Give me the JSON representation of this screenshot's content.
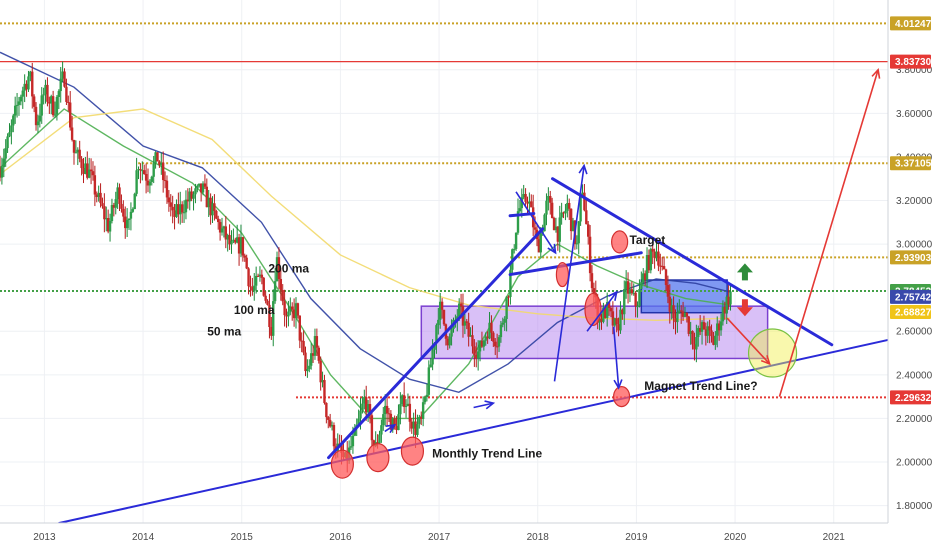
{
  "chart_data": {
    "type": "candlestick",
    "title": "",
    "xlabel": "",
    "ylabel": "",
    "xlim": [
      2012.55,
      2021.55
    ],
    "ylim": [
      1.72,
      4.12
    ],
    "x_ticks": [
      {
        "x": 2013,
        "label": "2013"
      },
      {
        "x": 2014,
        "label": "2014"
      },
      {
        "x": 2015,
        "label": "2015"
      },
      {
        "x": 2016,
        "label": "2016"
      },
      {
        "x": 2017,
        "label": "2017"
      },
      {
        "x": 2018,
        "label": "2018"
      },
      {
        "x": 2019,
        "label": "2019"
      },
      {
        "x": 2020,
        "label": "2020"
      },
      {
        "x": 2021,
        "label": "2021"
      }
    ],
    "y_ticks": [
      {
        "y": 1.8,
        "label": "1.80000"
      },
      {
        "y": 2.0,
        "label": "2.00000"
      },
      {
        "y": 2.2,
        "label": "2.20000"
      },
      {
        "y": 2.4,
        "label": "2.40000"
      },
      {
        "y": 2.6,
        "label": "2.60000"
      },
      {
        "y": 3.0,
        "label": "3.00000"
      },
      {
        "y": 3.2,
        "label": "3.20000"
      },
      {
        "y": 3.4,
        "label": "3.40000"
      },
      {
        "y": 3.6,
        "label": "3.60000"
      },
      {
        "y": 3.8,
        "label": "3.80000"
      }
    ],
    "price_badges": [
      {
        "value": "4.01247",
        "y": 4.01247,
        "color": "#c9a227"
      },
      {
        "value": "3.83730",
        "y": 3.8373,
        "color": "#e53935"
      },
      {
        "value": "3.37105",
        "y": 3.37105,
        "color": "#c9a227"
      },
      {
        "value": "2.93903",
        "y": 2.93903,
        "color": "#c9a227"
      },
      {
        "value": "2.78453",
        "y": 2.78453,
        "color": "#43a047"
      },
      {
        "value": "2.75742",
        "y": 2.75742,
        "color": "#3949ab"
      },
      {
        "value": "2.68827",
        "y": 2.68827,
        "color": "#f0c419",
        "text_color": "#1a1a1a"
      },
      {
        "value": "2.29632",
        "y": 2.29632,
        "color": "#e53935"
      }
    ],
    "horizontal_levels": [
      {
        "y": 4.01247,
        "color": "#c9a227",
        "style": "dotted",
        "from": 2012.55
      },
      {
        "y": 3.8373,
        "color": "#e53935",
        "style": "solid",
        "from": 2012.55
      },
      {
        "y": 3.37105,
        "color": "#c9a227",
        "style": "dotted",
        "from": 2013.95
      },
      {
        "y": 2.93903,
        "color": "#c9a227",
        "style": "dotted",
        "from": 2017.72
      },
      {
        "y": 2.78453,
        "color": "#43a047",
        "style": "dotted",
        "from": 2012.55
      },
      {
        "y": 2.29632,
        "color": "#e53935",
        "style": "dotted",
        "from": 2015.55
      }
    ],
    "zones": [
      {
        "x0": 2016.82,
        "x1": 2020.33,
        "y0": 2.475,
        "y1": 2.715,
        "fill": "#b98cf0",
        "opacity": 0.55,
        "stroke": "#7b3fd0"
      },
      {
        "x0": 2019.05,
        "x1": 2019.92,
        "y0": 2.685,
        "y1": 2.835,
        "fill": "#5577ee",
        "opacity": 0.75,
        "stroke": "#2233aa"
      }
    ],
    "trend_lines": [
      {
        "name": "Monthly Trend Line",
        "x": [
          2013.15,
          2021.55
        ],
        "y": [
          1.72,
          2.56
        ],
        "color": "#2a2ad8",
        "width": 2
      },
      {
        "x": [
          2015.88,
          2018.05
        ],
        "y": [
          2.02,
          3.07
        ],
        "color": "#2a2ad8",
        "width": 3
      },
      {
        "x": [
          2017.72,
          2019.05
        ],
        "y": [
          2.86,
          2.96
        ],
        "color": "#2a2ad8",
        "width": 3
      },
      {
        "x": [
          2018.15,
          2020.98
        ],
        "y": [
          3.3,
          2.538
        ],
        "color": "#2a2ad8",
        "width": 3
      },
      {
        "x": [
          2017.72,
          2017.96
        ],
        "y": [
          3.13,
          3.14
        ],
        "color": "#2a2ad8",
        "width": 3
      }
    ],
    "arrows": [
      {
        "x": [
          2018.17,
          2018.47
        ],
        "y": [
          2.37,
          3.36
        ],
        "color": "#2a2ad8"
      },
      {
        "x": [
          2017.78,
          2018.18
        ],
        "y": [
          3.24,
          2.96
        ],
        "color": "#2a2ad8"
      },
      {
        "x": [
          2018.5,
          2018.8
        ],
        "y": [
          2.6,
          2.78
        ],
        "color": "#2a2ad8"
      },
      {
        "x": [
          2018.77,
          2018.82
        ],
        "y": [
          2.62,
          2.34
        ],
        "color": "#2a2ad8"
      },
      {
        "x": [
          2019.92,
          2020.35
        ],
        "y": [
          2.66,
          2.45
        ],
        "color": "#e53935"
      },
      {
        "x": [
          2020.45,
          2021.45
        ],
        "y": [
          2.3,
          3.8
        ],
        "color": "#e53935"
      },
      {
        "x": [
          2016.45,
          2016.55
        ],
        "y": [
          2.14,
          2.17
        ],
        "color": "#2a2ad8"
      },
      {
        "x": [
          2017.35,
          2017.55
        ],
        "y": [
          2.25,
          2.27
        ],
        "color": "#2a2ad8"
      }
    ],
    "markers": [
      {
        "type": "ellipse",
        "x": 2016.02,
        "y": 1.99,
        "rx": 11,
        "ry": 14,
        "color": "#ff5a5a"
      },
      {
        "type": "ellipse",
        "x": 2016.38,
        "y": 2.02,
        "rx": 11,
        "ry": 14,
        "color": "#ff5a5a"
      },
      {
        "type": "ellipse",
        "x": 2016.73,
        "y": 2.05,
        "rx": 11,
        "ry": 14,
        "color": "#ff5a5a"
      },
      {
        "type": "ellipse",
        "x": 2018.25,
        "y": 2.86,
        "rx": 6,
        "ry": 12,
        "color": "#ff5a5a"
      },
      {
        "type": "ellipse",
        "x": 2018.83,
        "y": 3.01,
        "rx": 8,
        "ry": 11,
        "color": "#ff5a5a"
      },
      {
        "type": "ellipse",
        "x": 2018.56,
        "y": 2.7,
        "rx": 8,
        "ry": 16,
        "color": "#ff5a5a"
      },
      {
        "type": "ellipse",
        "x": 2018.85,
        "y": 2.3,
        "rx": 8,
        "ry": 10,
        "color": "#ff5a5a"
      },
      {
        "type": "circle",
        "x": 2020.38,
        "y": 2.5,
        "rx": 24,
        "ry": 24,
        "color": "#f2f04a"
      }
    ],
    "icon_arrows": [
      {
        "name": "green-up-arrow-icon",
        "x": 2020.1,
        "y": 2.87,
        "dir": "up",
        "color": "#2e8b3a"
      },
      {
        "name": "red-down-arrow-icon",
        "x": 2020.1,
        "y": 2.71,
        "dir": "down",
        "color": "#e53935"
      }
    ],
    "annotations": [
      {
        "text": "200 ma",
        "x": 2015.27,
        "y": 2.87
      },
      {
        "text": "100 ma",
        "x": 2014.92,
        "y": 2.68
      },
      {
        "text": "50 ma",
        "x": 2014.65,
        "y": 2.58
      },
      {
        "text": "Target",
        "x": 2018.93,
        "y": 3.0
      },
      {
        "text": "Magnet Trend Line?",
        "x": 2019.08,
        "y": 2.33
      },
      {
        "text": "Monthly Trend Line",
        "x": 2016.93,
        "y": 2.02
      }
    ],
    "moving_averages": [
      {
        "name": "50 ma",
        "color": "#4caf50",
        "x": [
          2012.55,
          2013.2,
          2013.8,
          2014.5,
          2015.0,
          2015.5,
          2015.9,
          2016.3,
          2016.8,
          2017.3,
          2017.8,
          2018.2,
          2018.6,
          2019.0,
          2019.5,
          2019.95
        ],
        "y": [
          3.35,
          3.62,
          3.45,
          3.28,
          3.05,
          2.7,
          2.4,
          2.2,
          2.2,
          2.45,
          2.85,
          3.0,
          2.9,
          2.82,
          2.75,
          2.72
        ]
      },
      {
        "name": "100 ma",
        "color": "#2c3fa0",
        "x": [
          2012.55,
          2013.3,
          2014.0,
          2014.6,
          2015.2,
          2015.7,
          2016.2,
          2016.7,
          2017.2,
          2017.7,
          2018.2,
          2018.7,
          2019.2,
          2019.6,
          2019.95
        ],
        "y": [
          3.88,
          3.72,
          3.45,
          3.35,
          3.1,
          2.75,
          2.52,
          2.38,
          2.32,
          2.45,
          2.64,
          2.76,
          2.84,
          2.82,
          2.78
        ]
      },
      {
        "name": "200 ma",
        "color": "#f2d96a",
        "x": [
          2012.55,
          2013.3,
          2014.0,
          2014.7,
          2015.3,
          2016.0,
          2016.7,
          2017.3,
          2018.0,
          2018.6,
          2019.2,
          2019.95
        ],
        "y": [
          3.32,
          3.58,
          3.62,
          3.48,
          3.22,
          2.95,
          2.8,
          2.72,
          2.68,
          2.66,
          2.65,
          2.66
        ]
      }
    ],
    "price_path": {
      "x": [
        2012.55,
        2012.65,
        2012.75,
        2012.85,
        2012.92,
        2013.0,
        2013.1,
        2013.2,
        2013.3,
        2013.45,
        2013.55,
        2013.65,
        2013.75,
        2013.85,
        2013.95,
        2014.05,
        2014.15,
        2014.3,
        2014.45,
        2014.6,
        2014.75,
        2014.9,
        2015.0,
        2015.1,
        2015.2,
        2015.3,
        2015.35,
        2015.45,
        2015.55,
        2015.65,
        2015.75,
        2015.85,
        2015.95,
        2016.05,
        2016.15,
        2016.25,
        2016.35,
        2016.45,
        2016.55,
        2016.65,
        2016.75,
        2016.82,
        2016.9,
        2017.0,
        2017.1,
        2017.2,
        2017.3,
        2017.4,
        2017.5,
        2017.6,
        2017.7,
        2017.8,
        2017.9,
        2018.0,
        2018.1,
        2018.2,
        2018.3,
        2018.4,
        2018.45,
        2018.55,
        2018.62,
        2018.7,
        2018.8,
        2018.9,
        2019.0,
        2019.1,
        2019.2,
        2019.28,
        2019.38,
        2019.48,
        2019.58,
        2019.68,
        2019.78,
        2019.88,
        2019.96
      ],
      "y": [
        3.35,
        3.5,
        3.68,
        3.78,
        3.55,
        3.7,
        3.62,
        3.78,
        3.42,
        3.33,
        3.2,
        3.08,
        3.25,
        3.05,
        3.38,
        3.3,
        3.4,
        3.12,
        3.2,
        3.25,
        3.1,
        2.98,
        3.0,
        2.78,
        2.85,
        2.62,
        2.95,
        2.65,
        2.7,
        2.4,
        2.55,
        2.25,
        2.08,
        2.0,
        2.12,
        2.3,
        2.05,
        2.25,
        2.15,
        2.3,
        2.15,
        2.18,
        2.4,
        2.72,
        2.55,
        2.7,
        2.58,
        2.5,
        2.62,
        2.55,
        2.78,
        3.15,
        3.22,
        2.98,
        3.2,
        3.05,
        3.18,
        2.98,
        3.28,
        2.82,
        2.65,
        2.7,
        2.6,
        2.8,
        2.72,
        2.9,
        2.98,
        2.85,
        2.65,
        2.7,
        2.55,
        2.62,
        2.55,
        2.7,
        2.78
      ]
    }
  }
}
